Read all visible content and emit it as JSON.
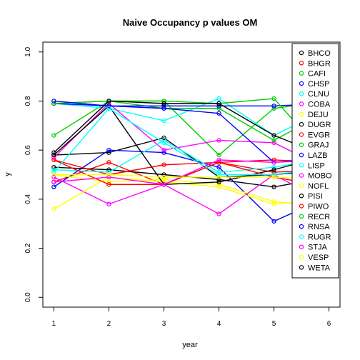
{
  "chart_data": {
    "type": "line",
    "title": "Naive Occupancy p values OM",
    "xlabel": "year",
    "ylabel": "y",
    "x": [
      1,
      2,
      3,
      4,
      5,
      6
    ],
    "x_ticks": [
      "1",
      "2",
      "3",
      "4",
      "5",
      "6"
    ],
    "y_ticks": [
      "0.0",
      "0.2",
      "0.4",
      "0.6",
      "0.8",
      "1.0"
    ],
    "xlim": [
      0.8,
      6.2
    ],
    "ylim": [
      -0.04,
      1.04
    ],
    "y_tick_values": [
      0,
      0.2,
      0.4,
      0.6,
      0.8,
      1.0
    ],
    "legend_position": "right",
    "grid": false,
    "series": [
      {
        "name": "BHCO",
        "color": "#000000",
        "values": [
          0.58,
          0.59,
          0.65,
          0.49,
          0.5,
          0.52
        ]
      },
      {
        "name": "BHGR",
        "color": "#ff0000",
        "values": [
          0.47,
          0.55,
          0.46,
          0.55,
          0.51,
          0.52
        ]
      },
      {
        "name": "CAFI",
        "color": "#00cd00",
        "values": [
          0.66,
          0.8,
          0.8,
          0.58,
          0.77,
          0.8
        ]
      },
      {
        "name": "CHSP",
        "color": "#0000ff",
        "values": [
          0.45,
          0.6,
          0.59,
          0.53,
          0.31,
          0.41
        ]
      },
      {
        "name": "CLNU",
        "color": "#00ffff",
        "values": [
          0.79,
          0.77,
          0.72,
          0.81,
          0.66,
          0.77
        ]
      },
      {
        "name": "COBA",
        "color": "#ff00ff",
        "values": [
          0.57,
          0.79,
          0.6,
          0.64,
          0.63,
          0.52
        ]
      },
      {
        "name": "DEJU",
        "color": "#ffff00",
        "values": [
          0.5,
          0.47,
          0.48,
          0.46,
          0.39,
          0.37
        ]
      },
      {
        "name": "DUGR",
        "color": "#000000",
        "values": [
          0.53,
          0.52,
          0.5,
          0.48,
          0.45,
          0.49
        ]
      },
      {
        "name": "EVGR",
        "color": "#ff0000",
        "values": [
          0.56,
          0.5,
          0.54,
          0.55,
          0.56,
          0.55
        ]
      },
      {
        "name": "GRAJ",
        "color": "#00cd00",
        "values": [
          0.79,
          0.8,
          0.77,
          0.77,
          0.64,
          0.76
        ]
      },
      {
        "name": "LAZB",
        "color": "#0000ff",
        "values": [
          0.79,
          0.78,
          0.78,
          0.78,
          0.78,
          0.79
        ]
      },
      {
        "name": "LISP",
        "color": "#00ffff",
        "values": [
          0.52,
          0.51,
          0.64,
          0.51,
          0.53,
          0.57
        ]
      },
      {
        "name": "MOBO",
        "color": "#ff00ff",
        "values": [
          0.49,
          0.38,
          0.46,
          0.34,
          0.5,
          0.38
        ]
      },
      {
        "name": "NOFL",
        "color": "#ffff00",
        "values": [
          0.36,
          0.49,
          0.47,
          0.45,
          0.38,
          0.4
        ]
      },
      {
        "name": "PISI",
        "color": "#000000",
        "values": [
          0.58,
          0.78,
          0.46,
          0.47,
          0.52,
          0.58
        ]
      },
      {
        "name": "PIWO",
        "color": "#ff0000",
        "values": [
          0.56,
          0.46,
          0.46,
          0.55,
          0.49,
          0.45
        ]
      },
      {
        "name": "RECR",
        "color": "#00cd00",
        "values": [
          0.79,
          0.8,
          0.8,
          0.79,
          0.81,
          0.56
        ]
      },
      {
        "name": "RNSA",
        "color": "#0000ff",
        "values": [
          0.8,
          0.78,
          0.77,
          0.75,
          0.55,
          0.57
        ]
      },
      {
        "name": "RUGR",
        "color": "#00ffff",
        "values": [
          0.51,
          0.77,
          0.63,
          0.5,
          0.5,
          0.53
        ]
      },
      {
        "name": "STJA",
        "color": "#ff00ff",
        "values": [
          0.47,
          0.49,
          0.46,
          0.56,
          0.55,
          0.56
        ]
      },
      {
        "name": "VESP",
        "color": "#ffff00",
        "values": [
          0.5,
          0.5,
          0.49,
          0.49,
          0.49,
          0.48
        ]
      },
      {
        "name": "WETA",
        "color": "#000000",
        "values": [
          0.59,
          0.8,
          0.79,
          0.79,
          0.66,
          0.57
        ]
      }
    ]
  }
}
